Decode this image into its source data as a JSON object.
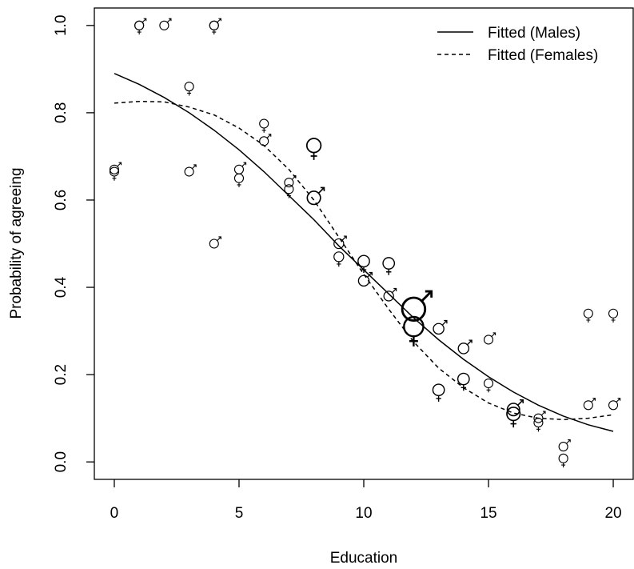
{
  "chart_data": {
    "type": "scatter",
    "title": "",
    "xlabel": "Education",
    "ylabel": "Probability of agreeing",
    "xlim": [
      -0.8,
      20.8
    ],
    "ylim": [
      -0.04,
      1.04
    ],
    "xticks": [
      0,
      5,
      10,
      15,
      20
    ],
    "yticks": [
      0.0,
      0.2,
      0.4,
      0.6,
      0.8,
      1.0
    ],
    "xtick_labels": [
      "0",
      "5",
      "10",
      "15",
      "20"
    ],
    "ytick_labels": [
      "0.0",
      "0.2",
      "0.4",
      "0.6",
      "0.8",
      "1.0"
    ],
    "grid": false,
    "legend_position": "top-right",
    "colors": {
      "foreground": "#000000",
      "background": "#ffffff"
    },
    "series": [
      {
        "name": "Fitted (Males)",
        "kind": "line",
        "style": "solid",
        "x": [
          0,
          1,
          2,
          3,
          4,
          5,
          6,
          7,
          8,
          9,
          10,
          11,
          12,
          13,
          14,
          15,
          16,
          17,
          18,
          19,
          20
        ],
        "y": [
          0.89,
          0.865,
          0.835,
          0.8,
          0.76,
          0.715,
          0.665,
          0.61,
          0.555,
          0.495,
          0.44,
          0.385,
          0.33,
          0.28,
          0.235,
          0.195,
          0.16,
          0.13,
          0.105,
          0.085,
          0.07
        ]
      },
      {
        "name": "Fitted (Females)",
        "kind": "line",
        "style": "dashed",
        "x": [
          0,
          1,
          2,
          3,
          4,
          5,
          6,
          7,
          8,
          9,
          10,
          11,
          12,
          13,
          14,
          15,
          16,
          17,
          18,
          19,
          20
        ],
        "y": [
          0.822,
          0.826,
          0.825,
          0.813,
          0.795,
          0.765,
          0.725,
          0.67,
          0.6,
          0.515,
          0.43,
          0.35,
          0.275,
          0.215,
          0.17,
          0.135,
          0.112,
          0.1,
          0.097,
          0.1,
          0.108
        ]
      },
      {
        "name": "",
        "kind": "points",
        "symbol": "male",
        "x": [
          0,
          1,
          2,
          3,
          4,
          4,
          5,
          6,
          7,
          8,
          9,
          10,
          11,
          12,
          13,
          14,
          15,
          16,
          17,
          18,
          19,
          20
        ],
        "y": [
          0.67,
          1.0,
          1.0,
          0.665,
          1.0,
          0.5,
          0.67,
          0.735,
          0.64,
          0.605,
          0.5,
          0.415,
          0.38,
          0.35,
          0.305,
          0.26,
          0.28,
          0.12,
          0.1,
          0.035,
          0.13,
          0.13
        ],
        "size": [
          1,
          1,
          1,
          1,
          1,
          1,
          1,
          1,
          1,
          1.5,
          1.1,
          1.2,
          1.1,
          2.6,
          1.2,
          1.2,
          1,
          1.4,
          1,
          1,
          1,
          1
        ]
      },
      {
        "name": "",
        "kind": "points",
        "symbol": "female",
        "x": [
          0,
          1,
          3,
          4,
          5,
          6,
          7,
          8,
          9,
          10,
          11,
          12,
          13,
          14,
          15,
          16,
          17,
          18,
          19,
          20
        ],
        "y": [
          0.665,
          1.0,
          0.86,
          1.0,
          0.65,
          0.775,
          0.625,
          0.725,
          0.47,
          0.46,
          0.455,
          0.31,
          0.165,
          0.19,
          0.18,
          0.11,
          0.09,
          0.008,
          0.34,
          0.34
        ],
        "size": [
          1,
          1,
          1,
          1,
          1,
          1,
          1,
          1.6,
          1.1,
          1.3,
          1.3,
          2.2,
          1.3,
          1.3,
          1,
          1.5,
          1,
          1,
          1,
          1
        ]
      }
    ]
  }
}
